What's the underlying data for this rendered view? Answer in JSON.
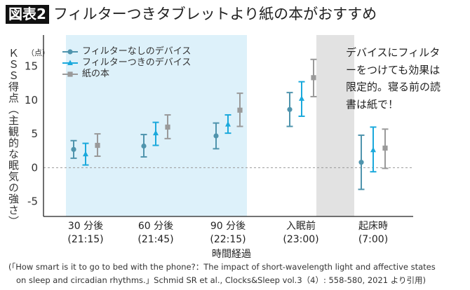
{
  "header": {
    "figure_label": "図表2",
    "title": "フィルターつきタブレットより紙の本がおすすめ"
  },
  "annotation": [
    "デバイスにフィルタ",
    "ーをつけても効果は",
    "限定的。寝る前の読",
    "書は紙で！"
  ],
  "citation": [
    "(「How smart is it to go to bed with the phone?：The impact of short-wavelength light and affective states",
    "on sleep and circadian rhythms.」Schmid SR et al.,  Clocks&Sleep vol.3（4）: 558-580,  2021 より引用)"
  ],
  "chart_data": {
    "type": "scatter",
    "subtype": "point-with-error-bars",
    "xlabel": "時間経過",
    "ylabel": "ＫＳＳ得点（主観的な眠気の強さ）",
    "yunit": "（点）",
    "categories": [
      {
        "line1": "30 分後",
        "line2": "(21:15)"
      },
      {
        "line1": "60 分後",
        "line2": "(21:45)"
      },
      {
        "line1": "90 分後",
        "line2": "(22:15)"
      },
      {
        "line1": "入眠前",
        "line2": "(23:00)"
      },
      {
        "line1": "起床時",
        "line2": "(7:00)"
      }
    ],
    "yticks": [
      -5,
      0,
      5,
      10,
      15
    ],
    "ylim": [
      -7.2,
      19.6
    ],
    "reference_line": 0,
    "legend_position": "top-left",
    "shaded_regions": [
      {
        "from_category": 0,
        "to_category": 2,
        "color": "#ddf1fa"
      },
      {
        "from_category": 3,
        "to_category": 3,
        "color": "#e2e2e2",
        "note": "between 入眠前 and 起床時"
      }
    ],
    "series": [
      {
        "name": "フィルターなしのデバイス",
        "marker": "circle",
        "color": "#4f94ad",
        "values": [
          2.7,
          3.2,
          4.7,
          8.6,
          0.8
        ],
        "lower": [
          1.4,
          1.6,
          2.8,
          6.1,
          -3.2
        ],
        "upper": [
          4.0,
          4.9,
          6.6,
          11.1,
          4.8
        ]
      },
      {
        "name": "フィルターつきのデバイス",
        "marker": "triangle",
        "color": "#1ba9dc",
        "values": [
          2.0,
          5.1,
          6.4,
          10.2,
          2.6
        ],
        "lower": [
          0.4,
          3.3,
          5.1,
          7.6,
          -0.6
        ],
        "upper": [
          3.6,
          6.7,
          7.8,
          12.7,
          6.0
        ]
      },
      {
        "name": "紙の本",
        "marker": "square",
        "color": "#9a9a9a",
        "values": [
          3.3,
          6.0,
          8.5,
          13.3,
          2.9
        ],
        "lower": [
          1.7,
          4.3,
          6.1,
          10.5,
          -0.1
        ],
        "upper": [
          5.0,
          7.8,
          11.0,
          16.0,
          5.7
        ]
      }
    ]
  }
}
